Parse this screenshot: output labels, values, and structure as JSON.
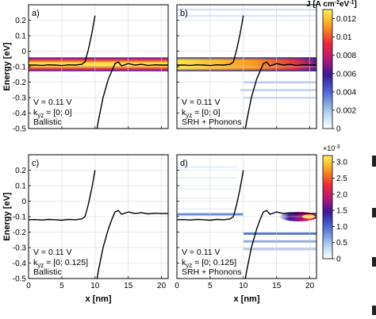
{
  "chart_data": {
    "type": "heatmap",
    "ylabel": "Energy [eV]",
    "xlabel": "x [nm]",
    "xlim": [
      0,
      21
    ],
    "ylim": [
      -0.5,
      0.3
    ],
    "xticks": [
      "0",
      "5",
      "10",
      "15",
      "20"
    ],
    "yticks": [
      "0.2",
      "0.1",
      "0",
      "-0.1",
      "-0.2",
      "-0.3",
      "-0.4",
      "-0.5"
    ],
    "grid": true,
    "panels": [
      {
        "label": "a)",
        "voltage": "V = 0.11 V",
        "kyz": "k",
        "kyz_sub": "yz",
        "kyz_val": " = [0; 0]",
        "model": "Ballistic",
        "band_left": -0.09,
        "band_right": -0.09,
        "current_map": "uniform band from -0.13 to -0.04 eV over x 0–21 nm"
      },
      {
        "label": "b)",
        "voltage": "V = 0.11 V",
        "kyz": "k",
        "kyz_sub": "yz",
        "kyz_val": " = [0; 0]",
        "model": "SRH + Phonons",
        "band_left": -0.09,
        "band_right": -0.09,
        "current_map": "band from -0.13 to -0.04 eV, faint lines at -0.2, -0.25, -0.3 eV"
      },
      {
        "label": "c)",
        "voltage": "V = 0.11 V",
        "kyz": "k",
        "kyz_sub": "yz",
        "kyz_val": " = [0; 0.125]",
        "model": "Ballistic",
        "band_left": -0.12,
        "band_right": -0.08,
        "current_map": "none"
      },
      {
        "label": "d)",
        "voltage": "V = 0.11 V",
        "kyz": "k",
        "kyz_sub": "yz",
        "kyz_val": " = [0; 0.125]",
        "model": "SRH + Phonons",
        "band_left": -0.12,
        "band_right": -0.08,
        "current_map": "lines at -0.09, -0.21, -0.26, -0.31 eV; hot spot near x 17–21 nm at -0.1 eV"
      }
    ],
    "band_profile": [
      [
        0,
        0
      ],
      [
        1,
        0.001
      ],
      [
        2,
        -0.002
      ],
      [
        3,
        0.002
      ],
      [
        4,
        0
      ],
      [
        5,
        -0.003
      ],
      [
        6,
        0.002
      ],
      [
        7,
        0
      ],
      [
        8,
        0.005
      ],
      [
        8.5,
        0.02
      ],
      [
        9,
        0.1
      ],
      [
        9.5,
        0.2
      ],
      [
        10,
        0.32
      ]
    ],
    "colorbars": [
      {
        "title": "J [A cm",
        "title_sup1": "-2",
        "title_mid": "eV",
        "title_sup2": "-1",
        "title_end": "]",
        "scale": "linear",
        "min": 0,
        "max": 0.013,
        "ticks": [
          "0.012",
          "0.01",
          "0.008",
          "0.006",
          "0.004",
          "0.002",
          "0"
        ]
      },
      {
        "multiplier": "×10",
        "multiplier_exp": "-3",
        "scale": "linear",
        "min": 0,
        "max": 0.0032,
        "ticks": [
          "3.0",
          "2.5",
          "2.0",
          "1.5",
          "1.0",
          "0.5",
          "0"
        ]
      }
    ]
  }
}
